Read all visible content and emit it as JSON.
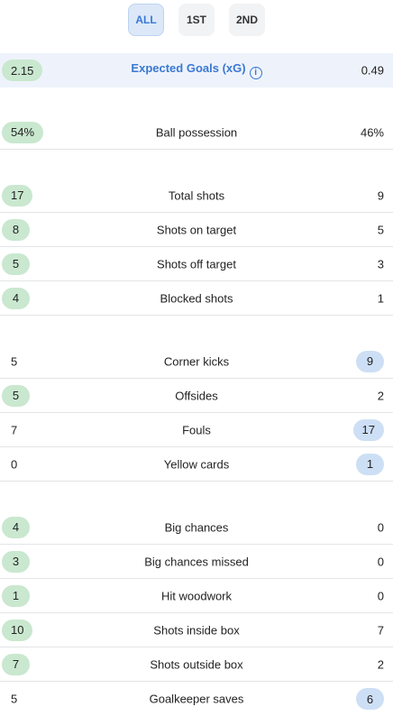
{
  "tabs": [
    {
      "label": "ALL",
      "active": true
    },
    {
      "label": "1ST",
      "active": false
    },
    {
      "label": "2ND",
      "active": false
    }
  ],
  "stats": [
    {
      "label": "Expected Goals (xG)",
      "home": "2.15",
      "away": "0.49",
      "highlight": "home"
    },
    {
      "label": "Ball possession",
      "home": "54%",
      "away": "46%",
      "highlight": "home"
    },
    {
      "label": "Total shots",
      "home": "17",
      "away": "9",
      "highlight": "home"
    },
    {
      "label": "Shots on target",
      "home": "8",
      "away": "5",
      "highlight": "home"
    },
    {
      "label": "Shots off target",
      "home": "5",
      "away": "3",
      "highlight": "home"
    },
    {
      "label": "Blocked shots",
      "home": "4",
      "away": "1",
      "highlight": "home"
    },
    {
      "label": "Corner kicks",
      "home": "5",
      "away": "9",
      "highlight": "away"
    },
    {
      "label": "Offsides",
      "home": "5",
      "away": "2",
      "highlight": "home"
    },
    {
      "label": "Fouls",
      "home": "7",
      "away": "17",
      "highlight": "away"
    },
    {
      "label": "Yellow cards",
      "home": "0",
      "away": "1",
      "highlight": "away"
    },
    {
      "label": "Big chances",
      "home": "4",
      "away": "0",
      "highlight": "home"
    },
    {
      "label": "Big chances missed",
      "home": "3",
      "away": "0",
      "highlight": "home"
    },
    {
      "label": "Hit woodwork",
      "home": "1",
      "away": "0",
      "highlight": "home"
    },
    {
      "label": "Shots inside box",
      "home": "10",
      "away": "7",
      "highlight": "home"
    },
    {
      "label": "Shots outside box",
      "home": "7",
      "away": "2",
      "highlight": "home"
    },
    {
      "label": "Goalkeeper saves",
      "home": "5",
      "away": "6",
      "highlight": "away"
    }
  ],
  "colors": {
    "home_highlight": "#c9e8cf",
    "away_highlight": "#cddff5",
    "accent": "#3a78d4"
  },
  "icons": {
    "xg_info": "info-icon"
  }
}
